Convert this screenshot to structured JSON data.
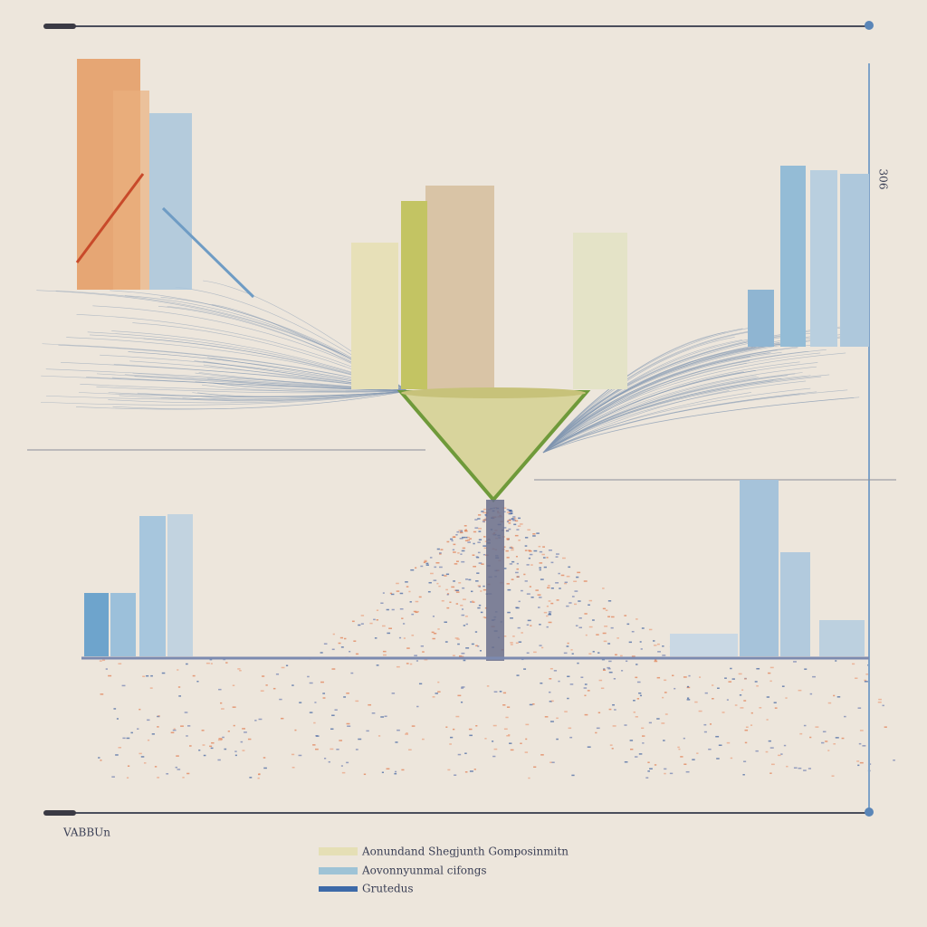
{
  "axis_label": "VABBUn",
  "side_label": "306",
  "legend": [
    {
      "label": "Aonundand Shegjunth Gomposinmitn"
    },
    {
      "label": "Aovonnyunmal cifongs"
    },
    {
      "label": "Grutedus"
    }
  ]
}
